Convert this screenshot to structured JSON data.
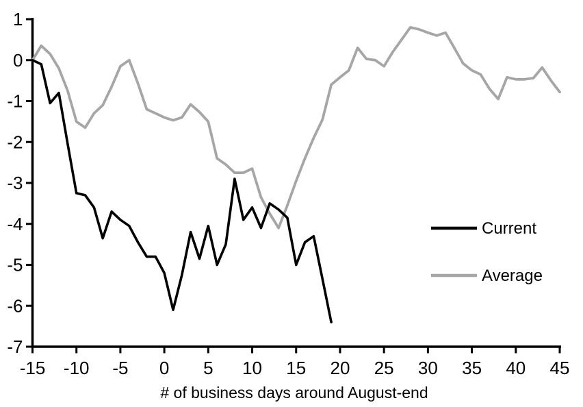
{
  "chart_data": {
    "type": "line",
    "title": "",
    "xlabel": "# of business days around August-end",
    "ylabel": "",
    "xlim": [
      -15,
      45
    ],
    "ylim": [
      -7,
      1
    ],
    "x_ticks": [
      -15,
      -10,
      -5,
      0,
      5,
      10,
      15,
      20,
      25,
      30,
      35,
      40,
      45
    ],
    "y_ticks": [
      -7,
      -6,
      -5,
      -4,
      -3,
      -2,
      -1,
      0,
      1
    ],
    "grid": false,
    "background_color": "#ffffff",
    "axis_color": "#000000",
    "legend": {
      "position": "middle-right",
      "entries": [
        "Current",
        "Average"
      ]
    },
    "series": [
      {
        "name": "Current",
        "color": "#000000",
        "x": [
          -15,
          -14,
          -13,
          -12,
          -11,
          -10,
          -9,
          -8,
          -7,
          -6,
          -5,
          -4,
          -3,
          -2,
          -1,
          0,
          1,
          2,
          3,
          4,
          5,
          6,
          7,
          8,
          9,
          10,
          11,
          12,
          13,
          14,
          15,
          16,
          17,
          18,
          19
        ],
        "values": [
          0.0,
          -0.1,
          -1.05,
          -0.8,
          -2.05,
          -3.25,
          -3.3,
          -3.6,
          -4.35,
          -3.7,
          -3.9,
          -4.05,
          -4.45,
          -4.8,
          -4.8,
          -5.2,
          -6.1,
          -5.25,
          -4.2,
          -4.85,
          -4.05,
          -5.0,
          -4.5,
          -2.9,
          -3.9,
          -3.6,
          -4.1,
          -3.5,
          -3.65,
          -3.85,
          -5.0,
          -4.45,
          -4.3,
          -5.35,
          -6.4
        ]
      },
      {
        "name": "Average",
        "color": "#a6a6a6",
        "x": [
          -15,
          -14,
          -13,
          -12,
          -11,
          -10,
          -9,
          -8,
          -7,
          -6,
          -5,
          -4,
          -3,
          -2,
          -1,
          0,
          1,
          2,
          3,
          4,
          5,
          6,
          7,
          8,
          9,
          10,
          11,
          12,
          13,
          14,
          15,
          16,
          17,
          18,
          19,
          20,
          21,
          22,
          23,
          24,
          25,
          26,
          27,
          28,
          29,
          30,
          31,
          32,
          33,
          34,
          35,
          36,
          37,
          38,
          39,
          40,
          41,
          42,
          43,
          44,
          45
        ],
        "values": [
          0.0,
          0.35,
          0.15,
          -0.2,
          -0.75,
          -1.5,
          -1.65,
          -1.3,
          -1.1,
          -0.65,
          -0.15,
          0.0,
          -0.57,
          -1.2,
          -1.3,
          -1.4,
          -1.47,
          -1.4,
          -1.08,
          -1.27,
          -1.5,
          -2.4,
          -2.55,
          -2.75,
          -2.75,
          -2.65,
          -3.35,
          -3.75,
          -4.1,
          -3.55,
          -2.95,
          -2.4,
          -1.9,
          -1.45,
          -0.6,
          -0.42,
          -0.25,
          0.3,
          0.03,
          0.0,
          -0.15,
          0.2,
          0.5,
          0.8,
          0.75,
          0.67,
          0.6,
          0.67,
          0.3,
          -0.08,
          -0.25,
          -0.35,
          -0.7,
          -0.95,
          -0.42,
          -0.47,
          -0.47,
          -0.44,
          -0.18,
          -0.5,
          -0.78
        ]
      }
    ]
  }
}
